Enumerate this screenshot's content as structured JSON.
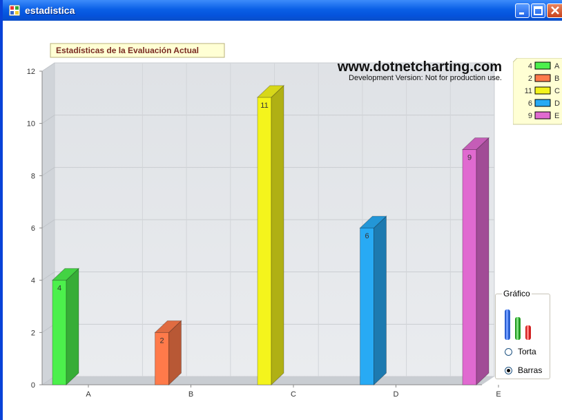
{
  "window": {
    "title": "estadistica"
  },
  "chart_data": {
    "type": "bar",
    "title": "Estadísticas de la Evaluación Actual",
    "watermark": "www.dotnetcharting.com",
    "watermark_sub": "Development Version: Not for production use.",
    "categories": [
      "A",
      "B",
      "C",
      "D",
      "E"
    ],
    "values": [
      4,
      2,
      11,
      6,
      9
    ],
    "colors": [
      "#4cf04c",
      "#ff7a4a",
      "#f4f41c",
      "#28aaf4",
      "#e06ad0"
    ],
    "ylim": [
      0,
      12
    ],
    "yticks": [
      "0",
      "2",
      "4",
      "6",
      "8",
      "10",
      "12"
    ],
    "legend": [
      {
        "value": "4",
        "label": "A"
      },
      {
        "value": "2",
        "label": "B"
      },
      {
        "value": "11",
        "label": "C"
      },
      {
        "value": "6",
        "label": "D"
      },
      {
        "value": "9",
        "label": "E"
      }
    ],
    "legend_position": "top-right",
    "grid": true
  },
  "options": {
    "group_title": "Gráfico",
    "radio_pie": "Torta",
    "radio_bars": "Barras",
    "selected": "Barras"
  }
}
